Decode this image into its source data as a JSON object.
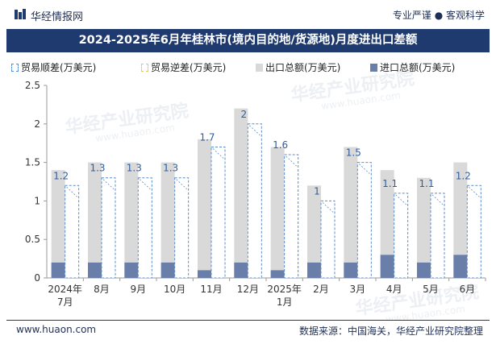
{
  "header": {
    "brand": "华经情报网",
    "tagline": "专业严谨 ● 客观科学"
  },
  "title": "2024-2025年6月年桂林市(境内目的地/货源地)月度进出口差额",
  "legend": [
    {
      "key": "surplus",
      "label": "贸易顺差(万美元)"
    },
    {
      "key": "deficit",
      "label": "贸易逆差(万美元)"
    },
    {
      "key": "export",
      "label": "出口总额(万美元)"
    },
    {
      "key": "import",
      "label": "进口总额(万美元)"
    }
  ],
  "watermark": {
    "text": "华经产业研究院",
    "url": "www.huaon.com"
  },
  "footer": {
    "site": "www.huaon.com",
    "source": "数据来源：中国海关，华经产业研究院整理"
  },
  "colors": {
    "title_bg": "#1f3a6e",
    "export": "#d9d9d9",
    "import": "#6a7eaa",
    "surplus_border": "#5b8ccc",
    "label_text": "#2f5d9e"
  },
  "chart_data": {
    "type": "bar",
    "categories": [
      "2024年\n7月",
      "8月",
      "9月",
      "10月",
      "11月",
      "12月",
      "2025年\n1月",
      "2月",
      "3月",
      "4月",
      "5月",
      "6月"
    ],
    "series": [
      {
        "name": "出口总额(万美元)",
        "values": [
          1.4,
          1.5,
          1.5,
          1.5,
          1.8,
          2.2,
          1.7,
          1.2,
          1.7,
          1.4,
          1.3,
          1.5
        ]
      },
      {
        "name": "进口总额(万美元)",
        "values": [
          0.2,
          0.2,
          0.2,
          0.2,
          0.1,
          0.2,
          0.1,
          0.2,
          0.2,
          0.3,
          0.2,
          0.3
        ]
      },
      {
        "name": "贸易顺差(万美元)",
        "values": [
          1.2,
          1.3,
          1.3,
          1.3,
          1.7,
          2,
          1.6,
          1,
          1.5,
          1.1,
          1.1,
          1.2
        ]
      },
      {
        "name": "贸易逆差(万美元)",
        "values": [
          0,
          0,
          0,
          0,
          0,
          0,
          0,
          0,
          0,
          0,
          0,
          0
        ]
      }
    ],
    "data_labels": [
      "1.2",
      "1.3",
      "1.3",
      "1.3",
      "1.7",
      "2",
      "1.6",
      "1",
      "1.5",
      "1.1",
      "1.1",
      "1.2"
    ],
    "y_ticks": [
      0,
      0.5,
      1,
      1.5,
      2,
      2.5
    ],
    "ylim": [
      0,
      2.5
    ],
    "title": "2024-2025年6月年桂林市(境内目的地/货源地)月度进出口差额",
    "xlabel": "",
    "ylabel": ""
  }
}
